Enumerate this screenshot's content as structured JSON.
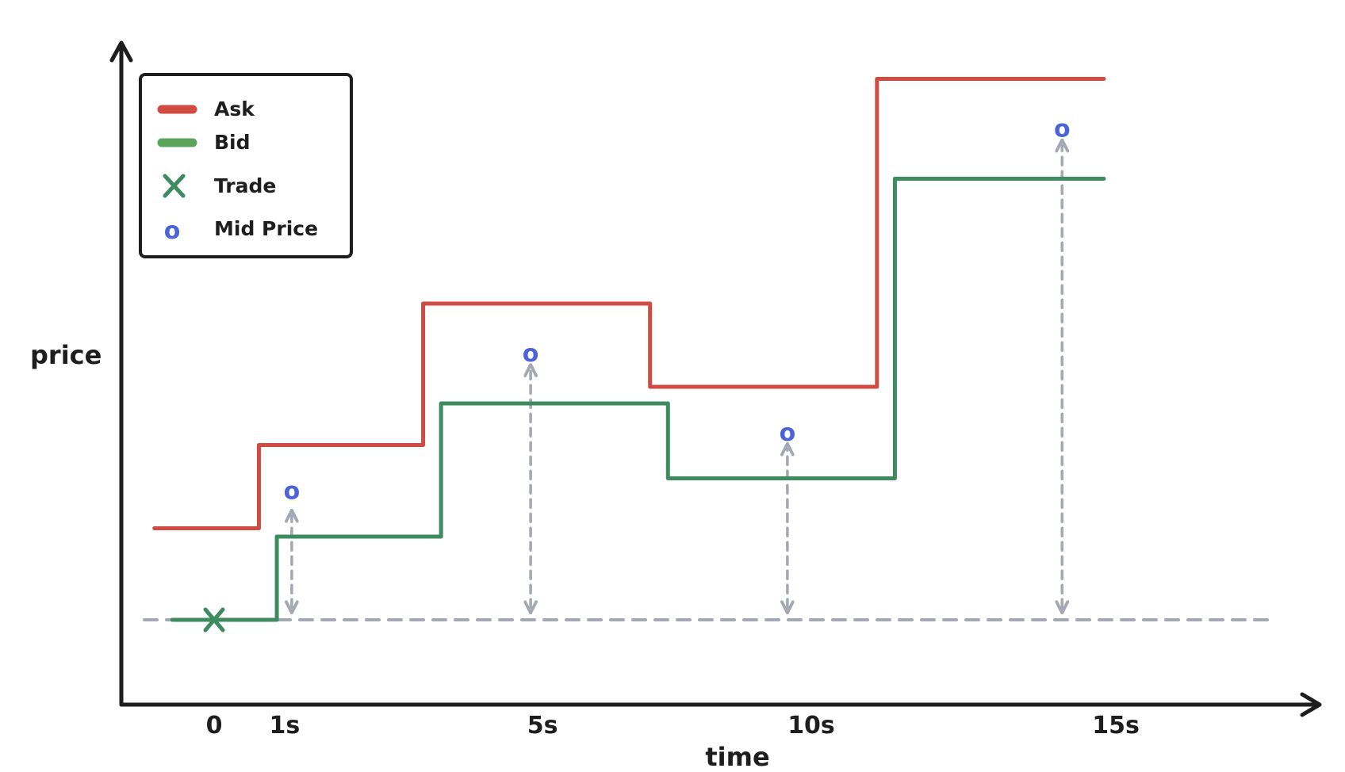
{
  "chart_data": {
    "type": "line",
    "step": true,
    "xlabel": "time",
    "ylabel": "price",
    "x_ticks": [
      "0",
      "1s",
      "5s",
      "10s",
      "15s"
    ],
    "legend": {
      "placement": "top-left",
      "items": [
        {
          "label": "Ask",
          "marker": "line",
          "color": "#d24b43"
        },
        {
          "label": "Bid",
          "marker": "line",
          "color": "#5ba55b"
        },
        {
          "label": "Trade",
          "marker": "x",
          "color": "#3d8b5e"
        },
        {
          "label": "Mid Price",
          "marker": "o",
          "color": "#4b63d9"
        }
      ]
    },
    "series": [
      {
        "name": "Ask",
        "color": "#d24b43",
        "x": [
          -1,
          0.75,
          3.5,
          7.3,
          11.1,
          14.9
        ],
        "y": [
          1.1,
          2.1,
          3.8,
          2.8,
          6.5,
          6.5
        ]
      },
      {
        "name": "Bid",
        "color": "#3d8b5e",
        "x": [
          -0.7,
          1.05,
          3.8,
          7.6,
          11.4,
          14.9
        ],
        "y": [
          0,
          1,
          2.6,
          1.7,
          5.3,
          5.3
        ]
      }
    ],
    "trades": [
      {
        "x": 0,
        "y": 0,
        "color": "#3d8b5e"
      }
    ],
    "mid_price": {
      "color": "#4b63d9",
      "glyph": "o",
      "points": [
        {
          "x": 1.3,
          "y": 1.55
        },
        {
          "x": 5.3,
          "y": 3.2
        },
        {
          "x": 9.6,
          "y": 2.25
        },
        {
          "x": 14.2,
          "y": 5.9
        }
      ]
    },
    "reference_line": {
      "y": 0,
      "style": "dashed",
      "color": "#a3a8b2"
    },
    "spread_arrows": [
      {
        "x": 1.3,
        "y_from": 0.15,
        "y_to": 1.25
      },
      {
        "x": 5.3,
        "y_from": 0.15,
        "y_to": 3.0
      },
      {
        "x": 9.6,
        "y_from": 0.15,
        "y_to": 2.05
      },
      {
        "x": 14.2,
        "y_from": 0.15,
        "y_to": 5.7
      }
    ]
  }
}
